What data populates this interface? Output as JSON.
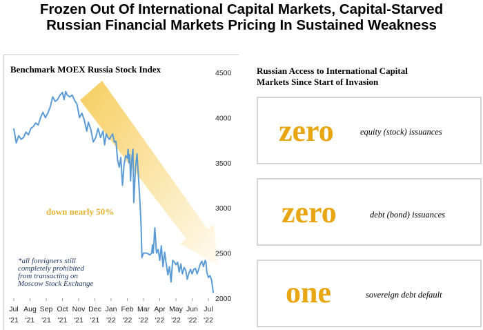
{
  "header": {
    "title_line1": "Frozen Out Of International Capital Markets, Capital-Starved",
    "title_line2": "Russian Financial Markets Pricing In Sustained Weakness"
  },
  "right_panel": {
    "title_line1": "Russian Access to International Capital",
    "title_line2": "Markets Since Start of Invasion",
    "items": [
      {
        "value": "zero",
        "description": "equity (stock) issuances"
      },
      {
        "value": "zero",
        "description": "debt (bond) issuances"
      },
      {
        "value": "one",
        "description": "sovereign debt default"
      }
    ]
  },
  "colors": {
    "accent": "#e8a613",
    "line": "#5b9bd5",
    "arrow": "#f5c542",
    "footnote": "#1f3864"
  },
  "chart_data": {
    "type": "line",
    "title": "Benchmark MOEX Russia Stock Index",
    "ylim": [
      2000,
      4500
    ],
    "y_ticks": [
      "4500",
      "4000",
      "3500",
      "3000",
      "2500",
      "2000"
    ],
    "y_axis_side": "right",
    "x_month_labels": [
      "Jul",
      "Aug",
      "Sep",
      "Oct",
      "Nov",
      "Dec",
      "Jan",
      "Feb",
      "Mar",
      "Apr",
      "May",
      "Jun",
      "Jul"
    ],
    "x_year_labels": [
      "'21",
      "'21",
      "'21",
      "'21",
      "'21",
      "'21",
      "'22",
      "'22",
      "'22",
      "'22",
      "'22",
      "'22",
      "'22"
    ],
    "annotation": "down nearly 50%",
    "footnote": [
      "*all foreigners still",
      "completely prohibited",
      "from transacting on",
      "Moscow Stock Exchange"
    ],
    "series": [
      {
        "x": [
          0,
          0.15,
          0.3,
          0.45,
          0.6,
          0.75,
          0.9,
          1.05,
          1.2,
          1.35,
          1.5,
          1.65,
          1.8,
          1.95,
          2.1,
          2.25,
          2.4,
          2.55,
          2.7,
          2.85,
          3.0,
          3.1,
          3.2,
          3.3,
          3.45,
          3.6,
          3.75,
          3.9,
          4.05,
          4.2,
          4.35,
          4.5,
          4.6,
          4.75,
          4.9,
          5.05,
          5.2,
          5.35,
          5.5,
          5.6,
          5.7,
          5.8,
          5.9,
          6.0,
          6.1,
          6.2,
          6.3,
          6.4,
          6.5,
          6.6,
          6.7,
          6.8,
          6.9,
          7.0,
          7.05,
          7.1,
          7.15,
          7.2,
          7.25,
          7.3,
          7.35,
          7.4,
          7.5,
          7.6,
          7.7,
          7.8,
          7.85,
          7.9,
          8.0,
          8.2,
          8.4,
          8.5,
          8.55,
          8.6,
          8.7,
          8.8,
          8.9,
          9.0,
          9.1,
          9.2,
          9.3,
          9.4,
          9.5,
          9.6,
          9.7,
          9.8,
          9.9,
          10.0,
          10.1,
          10.2,
          10.3,
          10.4,
          10.5,
          10.6,
          10.7,
          10.8,
          10.9,
          11.0,
          11.1,
          11.2,
          11.3,
          11.4,
          11.5,
          11.6,
          11.7,
          11.8,
          11.85,
          11.9,
          12.0,
          12.1,
          12.2,
          12.3
        ],
        "values": [
          3880,
          3720,
          3800,
          3760,
          3780,
          3840,
          3810,
          3880,
          3900,
          3940,
          3920,
          4000,
          4060,
          4000,
          4050,
          4120,
          4230,
          4180,
          4200,
          4250,
          4280,
          4200,
          4290,
          4250,
          4230,
          4250,
          4190,
          4150,
          4000,
          4050,
          3970,
          3850,
          3950,
          3870,
          3730,
          3780,
          3880,
          3780,
          3850,
          3700,
          3820,
          3780,
          3760,
          3790,
          3820,
          3730,
          3740,
          3530,
          3450,
          3560,
          3250,
          3480,
          3580,
          3550,
          3650,
          3500,
          3590,
          3300,
          3470,
          3580,
          3650,
          3060,
          3440,
          3600,
          3300,
          3000,
          2800,
          2450,
          2500,
          2500,
          2480,
          2500,
          2590,
          2500,
          2780,
          2500,
          2540,
          2420,
          2580,
          2350,
          2510,
          2380,
          2260,
          2350,
          2180,
          2420,
          2400,
          2370,
          2400,
          2290,
          2380,
          2270,
          2340,
          2310,
          2210,
          2280,
          2320,
          2270,
          2320,
          2330,
          2270,
          2320,
          2380,
          2410,
          2350,
          2420,
          2400,
          2290,
          2230,
          2250,
          2200,
          2060
        ]
      }
    ]
  }
}
